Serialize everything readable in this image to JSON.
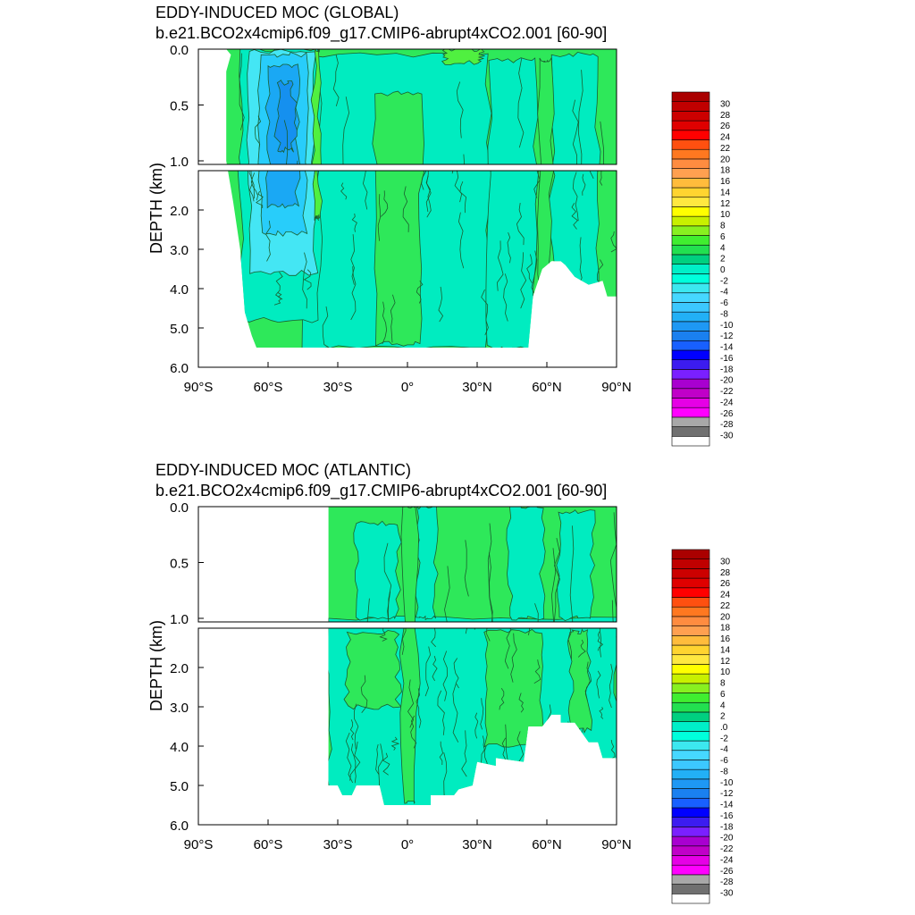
{
  "figure": {
    "colorbar": {
      "colors": [
        "#ffffff",
        "#707070",
        "#a8a8a8",
        "#ff00ff",
        "#e600e6",
        "#c000c8",
        "#a800d0",
        "#7a20ff",
        "#3c1cf0",
        "#0000ff",
        "#1860ff",
        "#1a80f0",
        "#1e98f4",
        "#22b0f6",
        "#3cc8ff",
        "#46d8ff",
        "#3ce8f0",
        "#00ffdc",
        "#00efc8",
        "#00d080",
        "#22e050",
        "#40ee30",
        "#88f020",
        "#c8f000",
        "#ffff00",
        "#ffe840",
        "#ffd430",
        "#ffbc3c",
        "#ffa050",
        "#ff8c40",
        "#ff7820",
        "#ff5010",
        "#ff0000",
        "#e00000",
        "#cc0000",
        "#c00000",
        "#aa0000"
      ],
      "labels": [
        "-30",
        "-28",
        "-26",
        "-24",
        "-22",
        "-20",
        "-18",
        "-16",
        "-14",
        "-12",
        "-10",
        "-8",
        "-6",
        "-4",
        "-2",
        "0",
        "2",
        "4",
        "6",
        "8",
        "10",
        "12",
        "14",
        "16",
        "18",
        "20",
        "22",
        "24",
        "26",
        "28",
        "30"
      ]
    },
    "panels": [
      {
        "title": "EDDY-INDUCED MOC (GLOBAL)",
        "subtitle": "b.e21.BCO2x4cmip6.f09_g17.CMIP6-abrupt4xCO2.001 [60-90]",
        "ylabel": "DEPTH (km)",
        "upper_ticks": [
          "0.0",
          "0.5",
          "1.0"
        ],
        "lower_ticks": [
          "2.0",
          "3.0",
          "4.0",
          "5.0",
          "6.0"
        ],
        "x_ticks": [
          "90°S",
          "60°S",
          "30°S",
          "0°",
          "30°N",
          "60°N",
          "90°N"
        ],
        "colorbar_labels": [
          "30",
          "28",
          "26",
          "24",
          "22",
          "20",
          "18",
          "16",
          "14",
          "12",
          "10",
          "8",
          "6",
          "4",
          "2",
          "0",
          "-2",
          "-4",
          "-6",
          "-8",
          "-10",
          "-12",
          "-14",
          "-16",
          "-18",
          "-20",
          "-22",
          "-24",
          "-26",
          "-28",
          "-30"
        ]
      },
      {
        "title": "EDDY-INDUCED MOC (ATLANTIC)",
        "subtitle": "b.e21.BCO2x4cmip6.f09_g17.CMIP6-abrupt4xCO2.001 [60-90]",
        "ylabel": "DEPTH (km)",
        "upper_ticks": [
          "0.0",
          "0.5",
          "1.0"
        ],
        "lower_ticks": [
          "2.0",
          "3.0",
          "4.0",
          "5.0",
          "6.0"
        ],
        "x_ticks": [
          "90°S",
          "60°S",
          "30°S",
          "0°",
          "30°N",
          "60°N",
          "90°N"
        ],
        "colorbar_labels": [
          "30",
          "28",
          "26",
          "24",
          "22",
          "20",
          "18",
          "16",
          "14",
          "12",
          "10",
          "8",
          "6",
          "4",
          "2",
          ".0",
          "-2",
          "-4",
          "-6",
          "-8",
          "-10",
          "-12",
          "-14",
          "-16",
          "-18",
          "-20",
          "-22",
          "-24",
          "-26",
          "-28",
          "-30"
        ]
      }
    ]
  },
  "chart_data": [
    {
      "type": "heatmap",
      "title": "EDDY-INDUCED MOC (GLOBAL)",
      "subtitle": "b.e21.BCO2x4cmip6.f09_g17.CMIP6-abrupt4xCO2.001 [60-90]",
      "xlabel": "",
      "ylabel": "DEPTH (km)",
      "xlim": [
        -90,
        90
      ],
      "ylim_upper": [
        0,
        1
      ],
      "ylim_lower": [
        1,
        6
      ],
      "x_tick_labels": [
        "90°S",
        "60°S",
        "30°S",
        "0°",
        "30°N",
        "60°N",
        "90°N"
      ],
      "y_tick_labels": [
        "0.0",
        "0.5",
        "1.0",
        "2.0",
        "3.0",
        "4.0",
        "5.0",
        "6.0"
      ],
      "contour_levels": [
        -30,
        -28,
        -26,
        -24,
        -22,
        -20,
        -18,
        -16,
        -14,
        -12,
        -10,
        -8,
        -6,
        -4,
        -2,
        0,
        2,
        4,
        6,
        8,
        10,
        12,
        14,
        16,
        18,
        20,
        22,
        24,
        26,
        28,
        30
      ],
      "data_extent": {
        "lat_min": -78,
        "lat_max": 90,
        "max_depth_km": 5.5
      },
      "features": [
        {
          "region": "Southern Ocean cell",
          "lat_range": [
            -70,
            -40
          ],
          "depth_range_km": [
            0,
            4.7
          ],
          "value": -10
        },
        {
          "region": "Southern Ocean core",
          "lat_range": [
            -58,
            -48
          ],
          "depth_range_km": [
            0.1,
            2.5
          ],
          "value": -14
        },
        {
          "region": "Near-surface band",
          "lat_range": [
            -75,
            -20
          ],
          "depth_range_km": [
            0,
            0.15
          ],
          "value": -8
        },
        {
          "region": "Positive near 40S",
          "lat_range": [
            -42,
            -38
          ],
          "depth_range_km": [
            0,
            2.2
          ],
          "value": 2
        },
        {
          "region": "Subtropical surface, north",
          "lat_range": [
            15,
            35
          ],
          "depth_range_km": [
            0,
            0.1
          ],
          "value": 2
        },
        {
          "region": "Interior background",
          "lat_range": [
            -35,
            90
          ],
          "depth_range_km": [
            0,
            5.5
          ],
          "value": -1
        }
      ]
    },
    {
      "type": "heatmap",
      "title": "EDDY-INDUCED MOC (ATLANTIC)",
      "subtitle": "b.e21.BCO2x4cmip6.f09_g17.CMIP6-abrupt4xCO2.001 [60-90]",
      "xlabel": "",
      "ylabel": "DEPTH (km)",
      "xlim": [
        -90,
        90
      ],
      "ylim_upper": [
        0,
        1
      ],
      "ylim_lower": [
        1,
        6
      ],
      "x_tick_labels": [
        "90°S",
        "60°S",
        "30°S",
        "0°",
        "30°N",
        "60°N",
        "90°N"
      ],
      "y_tick_labels": [
        "0.0",
        "0.5",
        "1.0",
        "2.0",
        "3.0",
        "4.0",
        "5.0",
        "6.0"
      ],
      "contour_levels": [
        -30,
        -28,
        -26,
        -24,
        -22,
        -20,
        -18,
        -16,
        -14,
        -12,
        -10,
        -8,
        -6,
        -4,
        -2,
        0,
        2,
        4,
        6,
        8,
        10,
        12,
        14,
        16,
        18,
        20,
        22,
        24,
        26,
        28,
        30
      ],
      "data_extent": {
        "lat_min": -34,
        "lat_max": 90,
        "max_depth_km": 5.5
      },
      "features": [
        {
          "region": "Upper ocean, south",
          "lat_range": [
            -34,
            -5
          ],
          "depth_range_km": [
            0,
            1
          ],
          "value": 1
        },
        {
          "region": "Equatorial column",
          "lat_range": [
            -5,
            5
          ],
          "depth_range_km": [
            0,
            5.5
          ],
          "value": -1
        },
        {
          "region": "Northern subtropics",
          "lat_range": [
            10,
            60
          ],
          "depth_range_km": [
            0,
            1
          ],
          "value": 1
        },
        {
          "region": "Deep interior",
          "lat_range": [
            -34,
            90
          ],
          "depth_range_km": [
            1,
            5.5
          ],
          "value": -1
        }
      ]
    }
  ]
}
